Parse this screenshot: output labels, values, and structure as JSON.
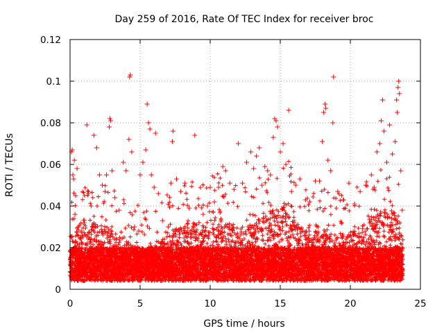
{
  "chart_data": {
    "type": "scatter",
    "title": "Day 259 of 2016, Rate Of TEC Index for receiver broc",
    "xlabel": "GPS time / hours",
    "ylabel": "ROTI / TECUs",
    "xlim": [
      0,
      25
    ],
    "ylim": [
      0,
      0.12
    ],
    "x_ticks": [
      0,
      5,
      10,
      15,
      20,
      25
    ],
    "x_tick_labels": [
      "0",
      "5",
      "10",
      "15",
      "20",
      "25"
    ],
    "y_ticks": [
      0,
      0.02,
      0.04,
      0.06,
      0.08,
      0.1,
      0.12
    ],
    "y_tick_labels": [
      "0",
      "0.02",
      "0.04",
      "0.06",
      "0.08",
      "0.1",
      "0.12"
    ],
    "grid": true,
    "marker": "+",
    "series_color": "#ff0000",
    "series": [
      {
        "name": "ROTI",
        "points": [
          [
            0.1,
            0.066
          ],
          [
            0.15,
            0.067
          ],
          [
            0.2,
            0.055
          ],
          [
            0.25,
            0.053
          ],
          [
            0.3,
            0.062
          ],
          [
            0.35,
            0.036
          ],
          [
            0.4,
            0.045
          ],
          [
            0.5,
            0.058
          ],
          [
            0.6,
            0.03
          ],
          [
            0.8,
            0.028
          ],
          [
            1.0,
            0.032
          ],
          [
            1.2,
            0.079
          ],
          [
            1.3,
            0.046
          ],
          [
            1.5,
            0.04
          ],
          [
            1.7,
            0.074
          ],
          [
            1.9,
            0.068
          ],
          [
            2.1,
            0.055
          ],
          [
            2.3,
            0.05
          ],
          [
            2.5,
            0.047
          ],
          [
            2.6,
            0.055
          ],
          [
            2.8,
            0.078
          ],
          [
            2.85,
            0.082
          ],
          [
            2.9,
            0.081
          ],
          [
            3.0,
            0.057
          ],
          [
            3.2,
            0.044
          ],
          [
            3.5,
            0.038
          ],
          [
            3.8,
            0.061
          ],
          [
            4.0,
            0.057
          ],
          [
            4.2,
            0.072
          ],
          [
            4.25,
            0.102
          ],
          [
            4.3,
            0.103
          ],
          [
            4.4,
            0.066
          ],
          [
            4.6,
            0.03
          ],
          [
            4.9,
            0.028
          ],
          [
            5.0,
            0.055
          ],
          [
            5.2,
            0.061
          ],
          [
            5.4,
            0.067
          ],
          [
            5.5,
            0.089
          ],
          [
            5.6,
            0.08
          ],
          [
            5.7,
            0.077
          ],
          [
            5.8,
            0.055
          ],
          [
            6.0,
            0.049
          ],
          [
            6.1,
            0.075
          ],
          [
            6.3,
            0.046
          ],
          [
            6.6,
            0.033
          ],
          [
            7.0,
            0.03
          ],
          [
            7.2,
            0.051
          ],
          [
            7.3,
            0.071
          ],
          [
            7.35,
            0.076
          ],
          [
            7.6,
            0.053
          ],
          [
            7.9,
            0.047
          ],
          [
            8.2,
            0.051
          ],
          [
            8.5,
            0.039
          ],
          [
            8.9,
            0.074
          ],
          [
            9.2,
            0.032
          ],
          [
            9.5,
            0.036
          ],
          [
            9.8,
            0.04
          ],
          [
            10.0,
            0.049
          ],
          [
            10.3,
            0.042
          ],
          [
            10.6,
            0.049
          ],
          [
            10.9,
            0.059
          ],
          [
            11.1,
            0.057
          ],
          [
            11.4,
            0.051
          ],
          [
            11.7,
            0.048
          ],
          [
            12.0,
            0.07
          ],
          [
            12.3,
            0.051
          ],
          [
            12.6,
            0.061
          ],
          [
            12.9,
            0.066
          ],
          [
            13.1,
            0.058
          ],
          [
            13.3,
            0.064
          ],
          [
            13.5,
            0.068
          ],
          [
            13.7,
            0.05
          ],
          [
            13.9,
            0.059
          ],
          [
            14.1,
            0.057
          ],
          [
            14.3,
            0.055
          ],
          [
            14.5,
            0.073
          ],
          [
            14.6,
            0.082
          ],
          [
            14.7,
            0.081
          ],
          [
            14.8,
            0.078
          ],
          [
            15.0,
            0.066
          ],
          [
            15.2,
            0.07
          ],
          [
            15.4,
            0.06
          ],
          [
            15.6,
            0.086
          ],
          [
            15.8,
            0.047
          ],
          [
            16.1,
            0.05
          ],
          [
            16.4,
            0.053
          ],
          [
            16.8,
            0.043
          ],
          [
            17.1,
            0.042
          ],
          [
            17.5,
            0.052
          ],
          [
            17.8,
            0.052
          ],
          [
            18.0,
            0.071
          ],
          [
            18.1,
            0.085
          ],
          [
            18.2,
            0.089
          ],
          [
            18.25,
            0.087
          ],
          [
            18.4,
            0.062
          ],
          [
            18.6,
            0.057
          ],
          [
            18.75,
            0.08
          ],
          [
            18.8,
            0.102
          ],
          [
            19.1,
            0.047
          ],
          [
            19.5,
            0.043
          ],
          [
            19.9,
            0.051
          ],
          [
            20.3,
            0.041
          ],
          [
            20.7,
            0.047
          ],
          [
            21.1,
            0.05
          ],
          [
            21.5,
            0.055
          ],
          [
            21.7,
            0.049
          ],
          [
            21.9,
            0.066
          ],
          [
            22.1,
            0.07
          ],
          [
            22.2,
            0.081
          ],
          [
            22.3,
            0.091
          ],
          [
            22.4,
            0.076
          ],
          [
            22.6,
            0.061
          ],
          [
            22.8,
            0.079
          ],
          [
            23.0,
            0.065
          ],
          [
            23.2,
            0.071
          ],
          [
            23.3,
            0.091
          ],
          [
            23.35,
            0.085
          ],
          [
            23.4,
            0.097
          ],
          [
            23.45,
            0.1
          ],
          [
            23.5,
            0.094
          ],
          [
            23.6,
            0.057
          ],
          [
            23.7,
            0.038
          ]
        ]
      }
    ]
  }
}
